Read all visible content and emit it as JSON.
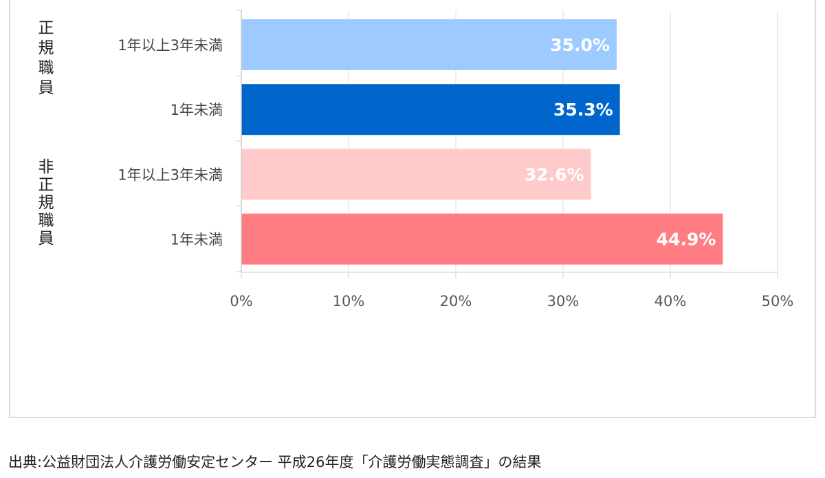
{
  "chart_data": {
    "type": "bar",
    "orientation": "horizontal",
    "groups": [
      {
        "label": "正規職員",
        "items": [
          {
            "label": "1年以上3年未満",
            "value": 35.0,
            "display": "35.0%",
            "color": "#9ecbff"
          },
          {
            "label": "1年未満",
            "value": 35.3,
            "display": "35.3%",
            "color": "#0066cc"
          }
        ]
      },
      {
        "label": "非正規職員",
        "items": [
          {
            "label": "1年以上3年未満",
            "value": 32.6,
            "display": "32.6%",
            "color": "#ffcaca"
          },
          {
            "label": "1年未満",
            "value": 44.9,
            "display": "44.9%",
            "color": "#ff7c82"
          }
        ]
      }
    ],
    "xlim": [
      0,
      50
    ],
    "x_ticks": [
      "0%",
      "10%",
      "20%",
      "30%",
      "40%",
      "50%"
    ],
    "x_tick_values": [
      0,
      10,
      20,
      30,
      40,
      50
    ],
    "grid": true,
    "gridline_color": "#dddddd",
    "axis_color": "#cccccc"
  },
  "source": "出典:公益財団法人介護労働安定センター 平成26年度「介護労働実態調査」の結果"
}
